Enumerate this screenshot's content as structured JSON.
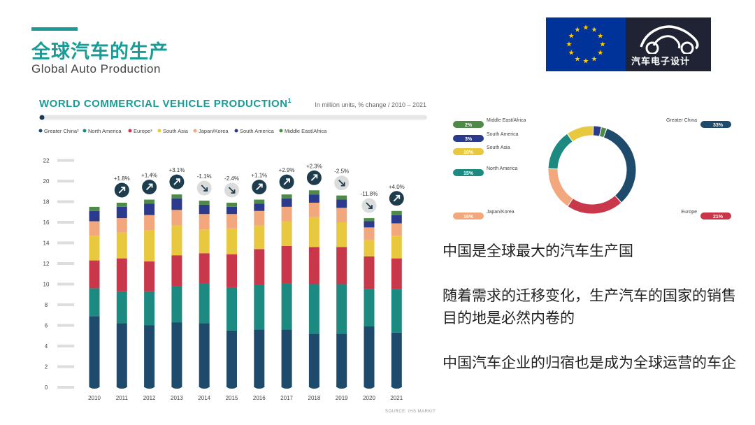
{
  "header": {
    "title_cn": "全球汽车的生产",
    "title_en": "Global Auto Production"
  },
  "logo": {
    "brand_text": "汽车电子设计",
    "icon": "car-outline-icon",
    "flag": "eu-flag"
  },
  "chart_title": "WORLD COMMERCIAL VEHICLE PRODUCTION",
  "chart_title_sup": "1",
  "chart_subtitle": "In million units, % change / 2010 – 2021",
  "source": "SOURCE: IHS MARKIT",
  "colors": {
    "accent": "#1a9c96",
    "Greater China": "#1e4a6b",
    "North America": "#1d8a82",
    "Europe": "#c8374a",
    "South Asia": "#e7c83e",
    "Japan/Korea": "#f3a77d",
    "South America": "#2b3a8c",
    "Middle East/Africa": "#4e8a48"
  },
  "chart_data": [
    {
      "type": "bar",
      "stacked": true,
      "title": "WORLD COMMERCIAL VEHICLE PRODUCTION",
      "subtitle": "In million units, % change / 2010 – 2021",
      "categories": [
        "2010",
        "2011",
        "2012",
        "2013",
        "2014",
        "2015",
        "2016",
        "2017",
        "2018",
        "2019",
        "2020",
        "2021"
      ],
      "ylim": [
        0,
        22
      ],
      "yticks": [
        0,
        2,
        4,
        6,
        8,
        10,
        12,
        14,
        16,
        18,
        20,
        22
      ],
      "legend": [
        "Greater China²",
        "North America",
        "Europe³",
        "South Asia",
        "Japan/Korea",
        "South America",
        "Middle East/Africa"
      ],
      "legend_position": "top",
      "series": [
        {
          "name": "Greater China",
          "values": [
            6.9,
            6.2,
            6.0,
            6.3,
            6.2,
            5.5,
            5.6,
            5.6,
            5.2,
            5.2,
            5.9,
            5.3
          ]
        },
        {
          "name": "North America",
          "values": [
            2.7,
            3.1,
            3.3,
            3.5,
            3.9,
            4.2,
            4.3,
            4.5,
            4.8,
            4.8,
            3.6,
            4.2
          ]
        },
        {
          "name": "Europe",
          "values": [
            2.7,
            3.2,
            2.9,
            3.0,
            2.9,
            3.2,
            3.5,
            3.6,
            3.6,
            3.6,
            3.2,
            3.0
          ]
        },
        {
          "name": "South Asia",
          "values": [
            2.4,
            2.5,
            3.0,
            2.9,
            2.3,
            2.5,
            2.3,
            2.4,
            2.9,
            2.4,
            1.6,
            2.2
          ]
        },
        {
          "name": "Japan/Korea",
          "values": [
            1.4,
            1.4,
            1.5,
            1.5,
            1.5,
            1.4,
            1.4,
            1.4,
            1.4,
            1.4,
            1.2,
            1.2
          ]
        },
        {
          "name": "South America",
          "values": [
            1.0,
            1.1,
            1.1,
            1.1,
            0.9,
            0.7,
            0.7,
            0.8,
            0.8,
            0.8,
            0.6,
            0.8
          ]
        },
        {
          "name": "Middle East/Africa",
          "values": [
            0.4,
            0.4,
            0.4,
            0.4,
            0.4,
            0.4,
            0.4,
            0.4,
            0.4,
            0.4,
            0.3,
            0.4
          ]
        }
      ],
      "annotations": [
        {
          "year": "2011",
          "change": "+1.8%",
          "direction": "up"
        },
        {
          "year": "2012",
          "change": "+1.4%",
          "direction": "up"
        },
        {
          "year": "2013",
          "change": "+3.1%",
          "direction": "up"
        },
        {
          "year": "2014",
          "change": "-1.1%",
          "direction": "down"
        },
        {
          "year": "2015",
          "change": "-2.4%",
          "direction": "down"
        },
        {
          "year": "2016",
          "change": "+1.1%",
          "direction": "up"
        },
        {
          "year": "2017",
          "change": "+2.9%",
          "direction": "up"
        },
        {
          "year": "2018",
          "change": "+2.3%",
          "direction": "up"
        },
        {
          "year": "2019",
          "change": "-2.5%",
          "direction": "down"
        },
        {
          "year": "2020",
          "change": "-11.8%",
          "direction": "down"
        },
        {
          "year": "2021",
          "change": "+4.0%",
          "direction": "up"
        }
      ]
    },
    {
      "type": "pie",
      "donut": true,
      "slices": [
        {
          "name": "Greater China",
          "value": 33,
          "label": "33%"
        },
        {
          "name": "Europe",
          "value": 21,
          "label": "21%"
        },
        {
          "name": "Japan/Korea",
          "value": 16,
          "label": "16%"
        },
        {
          "name": "North America",
          "value": 15,
          "label": "15%"
        },
        {
          "name": "South Asia",
          "value": 10,
          "label": "10%"
        },
        {
          "name": "South America",
          "value": 3,
          "label": "3%"
        },
        {
          "name": "Middle East/Africa",
          "value": 2,
          "label": "2%"
        }
      ]
    }
  ],
  "bullets": [
    "中国是全球最大的汽车生产国",
    "随着需求的迁移变化，生产汽车的国家的销售目的地是必然内卷的",
    "中国汽车企业的归宿也是成为全球运营的车企"
  ]
}
